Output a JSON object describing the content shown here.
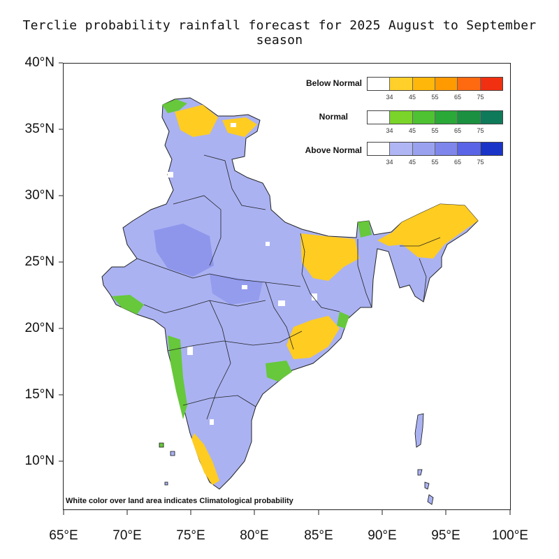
{
  "title": "Terclie probability rainfall forecast for 2025 August to September season",
  "axes": {
    "lat_labels": [
      "40°N",
      "35°N",
      "30°N",
      "25°N",
      "20°N",
      "15°N",
      "10°N"
    ],
    "lon_labels": [
      "65°E",
      "70°E",
      "75°E",
      "80°E",
      "85°E",
      "90°E",
      "95°E",
      "100°E"
    ]
  },
  "legend": {
    "categories": [
      {
        "name": "Below Normal",
        "colors": [
          "#ffffff",
          "#ffd02a",
          "#ffb70a",
          "#ff9a00",
          "#ff6a10",
          "#f03010"
        ]
      },
      {
        "name": "Normal",
        "colors": [
          "#ffffff",
          "#7ad42a",
          "#4ec232",
          "#2aa838",
          "#1a9040",
          "#0e7a5a"
        ]
      },
      {
        "name": "Above Normal",
        "colors": [
          "#ffffff",
          "#b0b6f4",
          "#9aa2f0",
          "#7e86ec",
          "#5a64e6",
          "#1a34c8"
        ]
      }
    ],
    "ticks": [
      "34",
      "45",
      "55",
      "65",
      "75"
    ]
  },
  "footnote": "White color over land area indicates Climatological probability",
  "colors": {
    "above_normal_land": "#aab2f2",
    "below_normal_patch": "#ffcc22",
    "normal_patch": "#66c83a",
    "boundary": "#111111"
  }
}
